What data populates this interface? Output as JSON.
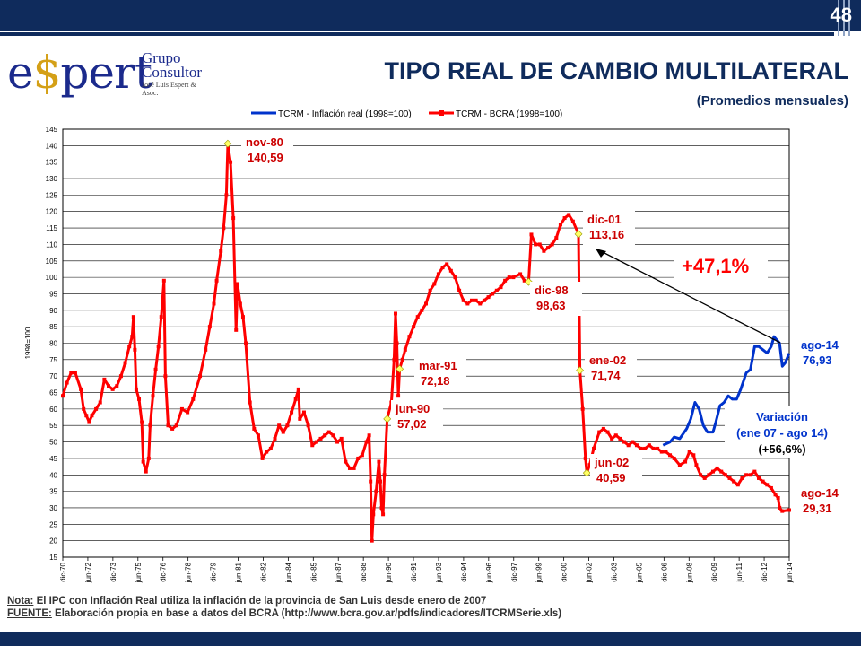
{
  "slide": {
    "page_number": "48",
    "title": "TIPO REAL DE CAMBIO MULTILATERAL",
    "subtitle": "(Promedios mensuales)",
    "logo": {
      "main": "e$pert",
      "line1": "Grupo",
      "line2": "Consultor",
      "line3": "José Luis Espert & Asoc."
    },
    "note_label": "Nota:",
    "note_text": " El IPC con Inflación Real utiliza la inflación de la provincia de San Luis desde enero de 2007",
    "source_label": "FUENTE:",
    "source_text": " Elaboración propia en base a datos del BCRA (http://www.bcra.gov.ar/pdfs/indicadores/ITCRMSerie.xls)"
  },
  "colors": {
    "primary": "#0f2b5c",
    "red_series": "#ff0000",
    "blue_series": "#0033cc",
    "blue_text": "#0033cc",
    "marker_yellow": "#ffff66"
  },
  "chart_data": {
    "type": "line",
    "ylabel": "1998=100",
    "ylim": [
      15,
      145
    ],
    "ytick_step": 5,
    "grid": "horizontal",
    "legend_position": "top",
    "x_ticks": [
      "dic-70",
      "jun-72",
      "dic-73",
      "jun-75",
      "dic-76",
      "jun-78",
      "dic-79",
      "jun-81",
      "dic-82",
      "jun-84",
      "dic-85",
      "jun-87",
      "dic-88",
      "jun-90",
      "dic-91",
      "jun-93",
      "dic-94",
      "jun-96",
      "dic-97",
      "jun-99",
      "dic-00",
      "jun-02",
      "dic-03",
      "jun-05",
      "dic-06",
      "jun-08",
      "dic-09",
      "jun-11",
      "dic-12",
      "jun-14"
    ],
    "series": [
      {
        "name": "TCRM - Inflación real  (1998=100)",
        "color": "#0033cc",
        "points": [
          [
            "2007-01",
            49.0
          ],
          [
            "2007-06",
            50.0
          ],
          [
            "2007-09",
            51.5
          ],
          [
            "2008-01",
            51.0
          ],
          [
            "2008-06",
            54.0
          ],
          [
            "2008-09",
            57.0
          ],
          [
            "2008-12",
            62.0
          ],
          [
            "2009-03",
            60.0
          ],
          [
            "2009-06",
            55.0
          ],
          [
            "2009-09",
            53.0
          ],
          [
            "2010-01",
            53.0
          ],
          [
            "2010-03",
            56.0
          ],
          [
            "2010-06",
            61.0
          ],
          [
            "2010-09",
            62.0
          ],
          [
            "2010-12",
            64.0
          ],
          [
            "2011-03",
            63.0
          ],
          [
            "2011-06",
            63.0
          ],
          [
            "2011-09",
            66.0
          ],
          [
            "2012-01",
            71.0
          ],
          [
            "2012-04",
            72.0
          ],
          [
            "2012-07",
            79.0
          ],
          [
            "2012-10",
            79.0
          ],
          [
            "2013-01",
            78.0
          ],
          [
            "2013-04",
            77.0
          ],
          [
            "2013-07",
            79.0
          ],
          [
            "2013-09",
            82.0
          ],
          [
            "2013-11",
            81.0
          ],
          [
            "2014-01",
            80.0
          ],
          [
            "2014-03",
            73.0
          ],
          [
            "2014-05",
            74.0
          ],
          [
            "2014-08",
            76.93
          ]
        ]
      },
      {
        "name": "TCRM - BCRA  (1998=100)",
        "color": "#ff0000",
        "points": [
          [
            "1970-12",
            64.0
          ],
          [
            "1971-03",
            68.0
          ],
          [
            "1971-06",
            71.0
          ],
          [
            "1971-09",
            71.0
          ],
          [
            "1972-01",
            66.0
          ],
          [
            "1972-03",
            60.0
          ],
          [
            "1972-05",
            58.0
          ],
          [
            "1972-07",
            56.0
          ],
          [
            "1972-09",
            58.0
          ],
          [
            "1972-12",
            60.0
          ],
          [
            "1973-03",
            62.0
          ],
          [
            "1973-06",
            69.0
          ],
          [
            "1973-09",
            67.0
          ],
          [
            "1973-12",
            66.0
          ],
          [
            "1974-03",
            67.0
          ],
          [
            "1974-06",
            70.0
          ],
          [
            "1974-09",
            74.0
          ],
          [
            "1974-12",
            79.0
          ],
          [
            "1975-02",
            82.0
          ],
          [
            "1975-03",
            88.0
          ],
          [
            "1975-04",
            78.0
          ],
          [
            "1975-05",
            66.0
          ],
          [
            "1975-07",
            63.0
          ],
          [
            "1975-09",
            56.0
          ],
          [
            "1975-10",
            44.0
          ],
          [
            "1975-12",
            41.0
          ],
          [
            "1976-02",
            45.0
          ],
          [
            "1976-03",
            55.0
          ],
          [
            "1976-05",
            64.0
          ],
          [
            "1976-07",
            72.0
          ],
          [
            "1976-09",
            79.0
          ],
          [
            "1976-11",
            88.0
          ],
          [
            "1977-01",
            99.0
          ],
          [
            "1977-02",
            70.0
          ],
          [
            "1977-04",
            55.0
          ],
          [
            "1977-07",
            54.0
          ],
          [
            "1977-10",
            55.0
          ],
          [
            "1978-02",
            60.0
          ],
          [
            "1978-06",
            59.0
          ],
          [
            "1978-10",
            63.0
          ],
          [
            "1979-03",
            70.0
          ],
          [
            "1979-07",
            78.0
          ],
          [
            "1979-10",
            85.0
          ],
          [
            "1980-01",
            92.0
          ],
          [
            "1980-03",
            99.0
          ],
          [
            "1980-06",
            108.0
          ],
          [
            "1980-08",
            115.0
          ],
          [
            "1980-10",
            125.0
          ],
          [
            "1980-11",
            140.59
          ],
          [
            "1981-01",
            135.0
          ],
          [
            "1981-03",
            118.0
          ],
          [
            "1981-05",
            84.0
          ],
          [
            "1981-06",
            98.0
          ],
          [
            "1981-08",
            92.0
          ],
          [
            "1981-10",
            88.0
          ],
          [
            "1981-12",
            80.0
          ],
          [
            "1982-03",
            62.0
          ],
          [
            "1982-06",
            54.0
          ],
          [
            "1982-09",
            52.0
          ],
          [
            "1982-12",
            45.0
          ],
          [
            "1983-03",
            47.0
          ],
          [
            "1983-06",
            48.0
          ],
          [
            "1983-09",
            51.0
          ],
          [
            "1983-12",
            55.0
          ],
          [
            "1984-03",
            53.0
          ],
          [
            "1984-06",
            55.0
          ],
          [
            "1984-09",
            59.0
          ],
          [
            "1984-12",
            63.0
          ],
          [
            "1985-02",
            66.0
          ],
          [
            "1985-03",
            57.0
          ],
          [
            "1985-06",
            59.0
          ],
          [
            "1985-09",
            55.0
          ],
          [
            "1985-12",
            49.0
          ],
          [
            "1986-03",
            50.0
          ],
          [
            "1986-06",
            51.0
          ],
          [
            "1986-09",
            52.0
          ],
          [
            "1986-12",
            53.0
          ],
          [
            "1987-03",
            52.0
          ],
          [
            "1987-06",
            50.0
          ],
          [
            "1987-09",
            51.0
          ],
          [
            "1987-12",
            44.0
          ],
          [
            "1988-03",
            42.0
          ],
          [
            "1988-06",
            42.0
          ],
          [
            "1988-09",
            45.0
          ],
          [
            "1988-12",
            46.0
          ],
          [
            "1989-03",
            50.0
          ],
          [
            "1989-05",
            52.0
          ],
          [
            "1989-06",
            38.0
          ],
          [
            "1989-07",
            20.0
          ],
          [
            "1989-08",
            28.0
          ],
          [
            "1989-10",
            35.0
          ],
          [
            "1989-12",
            44.0
          ],
          [
            "1990-01",
            38.0
          ],
          [
            "1990-02",
            30.0
          ],
          [
            "1990-03",
            28.0
          ],
          [
            "1990-04",
            40.0
          ],
          [
            "1990-06",
            57.02
          ],
          [
            "1990-09",
            62.0
          ],
          [
            "1990-11",
            75.0
          ],
          [
            "1990-12",
            89.0
          ],
          [
            "1991-01",
            80.0
          ],
          [
            "1991-02",
            64.0
          ],
          [
            "1991-03",
            72.18
          ],
          [
            "1991-05",
            75.0
          ],
          [
            "1991-07",
            78.0
          ],
          [
            "1991-10",
            82.0
          ],
          [
            "1992-01",
            85.0
          ],
          [
            "1992-04",
            88.0
          ],
          [
            "1992-07",
            90.0
          ],
          [
            "1992-10",
            92.0
          ],
          [
            "1993-01",
            96.0
          ],
          [
            "1993-04",
            98.0
          ],
          [
            "1993-07",
            101.0
          ],
          [
            "1993-10",
            103.0
          ],
          [
            "1994-01",
            104.0
          ],
          [
            "1994-04",
            102.0
          ],
          [
            "1994-07",
            100.0
          ],
          [
            "1994-10",
            96.0
          ],
          [
            "1995-01",
            93.0
          ],
          [
            "1995-04",
            92.0
          ],
          [
            "1995-07",
            93.0
          ],
          [
            "1995-10",
            93.0
          ],
          [
            "1996-01",
            92.0
          ],
          [
            "1996-04",
            93.0
          ],
          [
            "1996-07",
            94.0
          ],
          [
            "1996-10",
            95.0
          ],
          [
            "1997-01",
            96.0
          ],
          [
            "1997-04",
            97.0
          ],
          [
            "1997-07",
            99.0
          ],
          [
            "1997-10",
            100.0
          ],
          [
            "1998-01",
            100.0
          ],
          [
            "1998-06",
            101.0
          ],
          [
            "1998-09",
            99.0
          ],
          [
            "1998-12",
            98.63
          ],
          [
            "1999-02",
            113.0
          ],
          [
            "1999-05",
            110.0
          ],
          [
            "1999-08",
            110.0
          ],
          [
            "1999-11",
            108.0
          ],
          [
            "2000-02",
            109.0
          ],
          [
            "2000-05",
            110.0
          ],
          [
            "2000-08",
            112.0
          ],
          [
            "2000-11",
            116.0
          ],
          [
            "2001-02",
            118.0
          ],
          [
            "2001-05",
            119.0
          ],
          [
            "2001-08",
            117.0
          ],
          [
            "2001-12",
            113.16
          ],
          [
            "2002-01",
            71.74
          ],
          [
            "2002-03",
            60.0
          ],
          [
            "2002-05",
            45.0
          ],
          [
            "2002-06",
            40.59
          ],
          [
            "2002-08",
            43.0
          ],
          [
            "2002-11",
            48.0
          ],
          [
            "2003-03",
            53.0
          ],
          [
            "2003-06",
            54.0
          ],
          [
            "2003-09",
            53.0
          ],
          [
            "2003-12",
            51.0
          ],
          [
            "2004-03",
            52.0
          ],
          [
            "2004-06",
            51.0
          ],
          [
            "2004-09",
            50.0
          ],
          [
            "2004-12",
            49.0
          ],
          [
            "2005-03",
            50.0
          ],
          [
            "2005-06",
            49.0
          ],
          [
            "2005-09",
            48.0
          ],
          [
            "2005-12",
            48.0
          ],
          [
            "2006-03",
            49.0
          ],
          [
            "2006-06",
            48.0
          ],
          [
            "2006-09",
            48.0
          ],
          [
            "2006-12",
            47.0
          ],
          [
            "2007-03",
            47.0
          ],
          [
            "2007-06",
            46.0
          ],
          [
            "2007-09",
            45.0
          ],
          [
            "2008-01",
            43.0
          ],
          [
            "2008-05",
            44.0
          ],
          [
            "2008-08",
            47.0
          ],
          [
            "2008-11",
            46.0
          ],
          [
            "2009-01",
            43.0
          ],
          [
            "2009-04",
            40.0
          ],
          [
            "2009-07",
            39.0
          ],
          [
            "2009-10",
            40.0
          ],
          [
            "2010-01",
            41.0
          ],
          [
            "2010-04",
            42.0
          ],
          [
            "2010-07",
            41.0
          ],
          [
            "2010-10",
            40.0
          ],
          [
            "2011-01",
            39.0
          ],
          [
            "2011-04",
            38.0
          ],
          [
            "2011-07",
            37.0
          ],
          [
            "2011-10",
            39.0
          ],
          [
            "2012-01",
            40.0
          ],
          [
            "2012-04",
            40.0
          ],
          [
            "2012-07",
            41.0
          ],
          [
            "2012-10",
            39.0
          ],
          [
            "2013-01",
            38.0
          ],
          [
            "2013-04",
            37.0
          ],
          [
            "2013-07",
            36.0
          ],
          [
            "2013-10",
            34.0
          ],
          [
            "2013-12",
            33.0
          ],
          [
            "2014-01",
            30.0
          ],
          [
            "2014-03",
            29.0
          ],
          [
            "2014-08",
            29.31
          ]
        ]
      }
    ],
    "markers": [
      {
        "date": "1980-11",
        "value": 140.59
      },
      {
        "date": "1990-06",
        "value": 57.02
      },
      {
        "date": "1991-03",
        "value": 72.18
      },
      {
        "date": "1998-12",
        "value": 98.63
      },
      {
        "date": "2001-12",
        "value": 113.16
      },
      {
        "date": "2002-01",
        "value": 71.74
      },
      {
        "date": "2002-06",
        "value": 40.59
      }
    ],
    "annotations": [
      {
        "label": "nov-80",
        "value": "140,59",
        "color": "red"
      },
      {
        "label": "jun-90",
        "value": "57,02",
        "color": "red"
      },
      {
        "label": "mar-91",
        "value": "72,18",
        "color": "red"
      },
      {
        "label": "dic-98",
        "value": "98,63",
        "color": "red"
      },
      {
        "label": "dic-01",
        "value": "113,16",
        "color": "red"
      },
      {
        "label": "ene-02",
        "value": "71,74",
        "color": "red"
      },
      {
        "label": "jun-02",
        "value": "40,59",
        "color": "red"
      },
      {
        "label": "ago-14",
        "value": "76,93",
        "color": "blue"
      },
      {
        "label": "ago-14",
        "value": "29,31",
        "color": "red"
      }
    ],
    "callout_pct": "+47,1%",
    "variation_box": [
      "Variación",
      "(ene 07 - ago 14)",
      "(+56,6%)"
    ]
  }
}
